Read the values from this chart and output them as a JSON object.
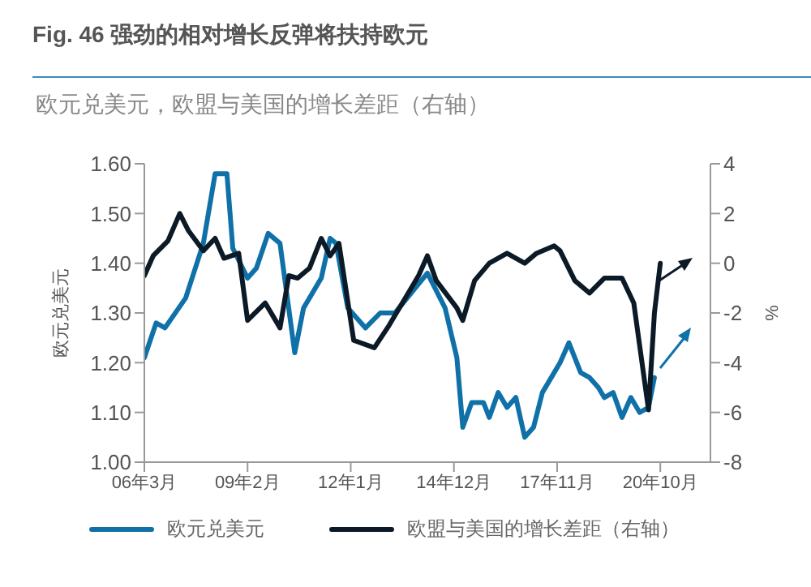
{
  "chart_data": {
    "type": "line",
    "title": "Fig. 46 强劲的相对增长反弹将扶持欧元",
    "subtitle": "欧元兑美元，欧盟与美国的增长差距（右轴）",
    "ylabel": "欧元兑美元",
    "y2label": "%",
    "xlim": [
      "2006-03",
      "2022-03"
    ],
    "xticks": [
      {
        "value": "2006-03",
        "label": "06年3月"
      },
      {
        "value": "2009-02",
        "label": "09年2月"
      },
      {
        "value": "2012-01",
        "label": "12年1月"
      },
      {
        "value": "2014-12",
        "label": "14年12月"
      },
      {
        "value": "2017-11",
        "label": "17年11月"
      },
      {
        "value": "2020-10",
        "label": "20年10月"
      }
    ],
    "ylim": [
      1.0,
      1.6
    ],
    "yticks": [
      {
        "value": 1.0,
        "label": "1.00"
      },
      {
        "value": 1.1,
        "label": "1.10"
      },
      {
        "value": 1.2,
        "label": "1.20"
      },
      {
        "value": 1.3,
        "label": "1.30"
      },
      {
        "value": 1.4,
        "label": "1.40"
      },
      {
        "value": 1.5,
        "label": "1.50"
      },
      {
        "value": 1.6,
        "label": "1.60"
      }
    ],
    "y2lim": [
      -8,
      4
    ],
    "y2ticks": [
      -8,
      -6,
      -4,
      -2,
      0,
      2,
      4
    ],
    "legend": "bottom",
    "marker": "none",
    "line_style": "solid",
    "series": [
      {
        "name": "欧元兑美元",
        "color": "#1071a8",
        "x": [
          "2006-03",
          "2006-07",
          "2006-10",
          "2007-05",
          "2007-11",
          "2008-03",
          "2008-07",
          "2008-09",
          "2009-02",
          "2009-05",
          "2009-09",
          "2010-01",
          "2010-06",
          "2010-09",
          "2011-03",
          "2011-06",
          "2011-08",
          "2011-12",
          "2012-06",
          "2012-11",
          "2013-04",
          "2014-03",
          "2014-09",
          "2015-01",
          "2015-03",
          "2015-06",
          "2015-10",
          "2015-12",
          "2016-03",
          "2016-06",
          "2016-09",
          "2016-12",
          "2017-03",
          "2017-06",
          "2017-10",
          "2017-12",
          "2018-03",
          "2018-07",
          "2018-10",
          "2019-01",
          "2019-03",
          "2019-06",
          "2019-09",
          "2019-12",
          "2020-03",
          "2020-06",
          "2020-08"
        ],
        "values": [
          1.21,
          1.28,
          1.27,
          1.33,
          1.44,
          1.58,
          1.58,
          1.43,
          1.37,
          1.39,
          1.46,
          1.44,
          1.22,
          1.31,
          1.37,
          1.45,
          1.44,
          1.31,
          1.27,
          1.3,
          1.3,
          1.38,
          1.31,
          1.21,
          1.07,
          1.12,
          1.12,
          1.09,
          1.14,
          1.11,
          1.13,
          1.05,
          1.07,
          1.14,
          1.18,
          1.2,
          1.24,
          1.18,
          1.17,
          1.15,
          1.13,
          1.14,
          1.09,
          1.13,
          1.1,
          1.11,
          1.17
        ]
      },
      {
        "name": "欧盟与美国的增长差距（右轴）",
        "color": "#0b1a26",
        "axis": "y2",
        "x": [
          "2006-03",
          "2006-06",
          "2006-11",
          "2007-03",
          "2007-06",
          "2007-11",
          "2008-03",
          "2008-06",
          "2008-11",
          "2009-02",
          "2009-08",
          "2010-01",
          "2010-04",
          "2010-07",
          "2010-11",
          "2011-03",
          "2011-06",
          "2011-09",
          "2012-02",
          "2012-09",
          "2013-02",
          "2013-12",
          "2014-03",
          "2014-06",
          "2015-01",
          "2015-03",
          "2015-07",
          "2015-12",
          "2016-06",
          "2016-12",
          "2017-04",
          "2017-10",
          "2017-12",
          "2018-05",
          "2018-10",
          "2019-03",
          "2019-09",
          "2020-01",
          "2020-06",
          "2020-08",
          "2020-10"
        ],
        "values": [
          -0.5,
          0.3,
          0.9,
          2.0,
          1.3,
          0.5,
          1.0,
          0.2,
          0.4,
          -2.3,
          -1.6,
          -2.6,
          -0.5,
          -0.6,
          -0.2,
          1.0,
          0.3,
          0.8,
          -3.1,
          -3.4,
          -2.5,
          -0.5,
          0.3,
          -0.7,
          -1.8,
          -2.3,
          -0.7,
          0.0,
          0.4,
          0.0,
          0.4,
          0.7,
          0.5,
          -0.7,
          -1.2,
          -0.6,
          -0.6,
          -1.6,
          -5.9,
          -2.0,
          0.0
        ]
      }
    ]
  }
}
